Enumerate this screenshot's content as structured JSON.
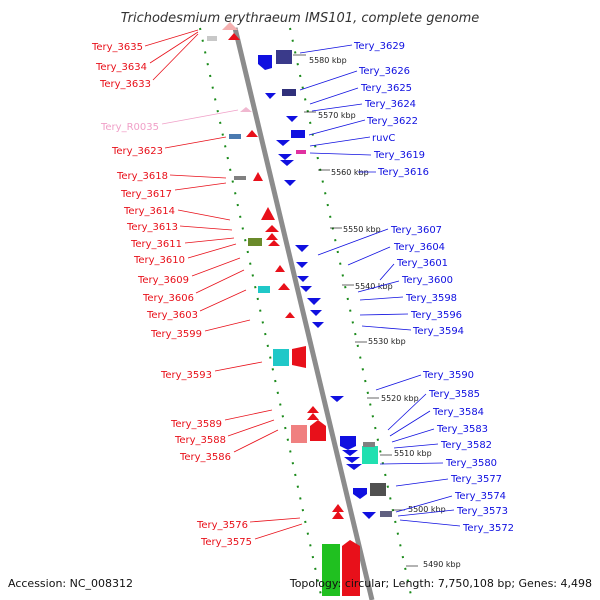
{
  "title": "Trichodesmium erythraeum IMS101, complete genome",
  "footer": {
    "accession": "Accession: NC_008312",
    "topology": "Topology: circular; Length: 7,750,108 bp; Genes: 4,498"
  },
  "colors": {
    "forward": "#e8101a",
    "reverse": "#1010e0",
    "rna": "#f0a0c8",
    "backbone": "#8a8a8a",
    "ruler_dots": "#1a8a1a"
  },
  "kbp_ticks": [
    "5580 kbp",
    "5570 kbp",
    "5560 kbp",
    "5550 kbp",
    "5540 kbp",
    "5530 kbp",
    "5520 kbp",
    "5510 kbp",
    "5500 kbp",
    "5490 kbp"
  ],
  "left_labels": [
    "Tery_3635",
    "Tery_3634",
    "Tery_3633",
    "Tery_R0035",
    "Tery_3623",
    "Tery_3618",
    "Tery_3617",
    "Tery_3614",
    "Tery_3613",
    "Tery_3611",
    "Tery_3610",
    "Tery_3609",
    "Tery_3606",
    "Tery_3603",
    "Tery_3599",
    "Tery_3593",
    "Tery_3589",
    "Tery_3588",
    "Tery_3586",
    "Tery_3576",
    "Tery_3575"
  ],
  "right_labels": [
    "Tery_3629",
    "Tery_3626",
    "Tery_3625",
    "Tery_3624",
    "Tery_3622",
    "ruvC",
    "Tery_3619",
    "Tery_3616",
    "Tery_3607",
    "Tery_3604",
    "Tery_3601",
    "Tery_3600",
    "Tery_3598",
    "Tery_3596",
    "Tery_3594",
    "Tery_3590",
    "Tery_3585",
    "Tery_3584",
    "Tery_3583",
    "Tery_3582",
    "Tery_3580",
    "Tery_3577",
    "Tery_3574",
    "Tery_3573",
    "Tery_3572"
  ]
}
